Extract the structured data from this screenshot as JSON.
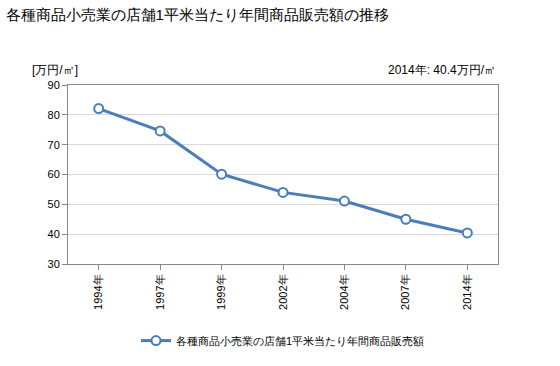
{
  "chart_data": {
    "type": "line",
    "title": "各種商品小売業の店舗1平米当たり年間商品販売額の推移",
    "ylabel": "[万円/㎡]",
    "annotation": "2014年: 40.4万円/㎡",
    "categories": [
      "1994年",
      "1997年",
      "1999年",
      "2002年",
      "2004年",
      "2007年",
      "2014年"
    ],
    "series": [
      {
        "name": "各種商品小売業の店舗1平米当たり年間商品販売額",
        "color": "#4a7ebb",
        "values": [
          82.1,
          74.6,
          60.1,
          54.0,
          51.1,
          45.0,
          40.4
        ]
      }
    ],
    "ylim": [
      30,
      90
    ],
    "yticks": [
      30,
      40,
      50,
      60,
      70,
      80,
      90
    ],
    "grid": true,
    "legend": "bottom",
    "marker": "circle",
    "line_style": "solid"
  }
}
